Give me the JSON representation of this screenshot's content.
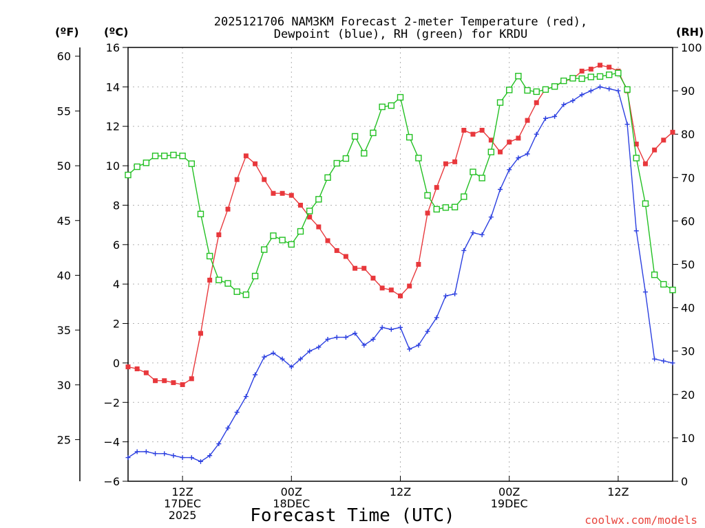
{
  "chart_data": {
    "type": "line",
    "title_line1": "2025121706 NAM3KM Forecast 2-meter Temperature (red),",
    "title_line2": "Dewpoint (blue), RH (green) for KRDU",
    "xlabel": "Forecast Time (UTC)",
    "credit": "coolwx.com/models",
    "unit_f": "(ºF)",
    "unit_c": "(ºC)",
    "unit_rh": "(RH)",
    "xlim": [
      6,
      66
    ],
    "ylim_c": [
      -6,
      16
    ],
    "ylim_rh": [
      0,
      100
    ],
    "ylim_f": [
      21.2,
      60.8
    ],
    "c_ticks": [
      -6,
      -4,
      -2,
      0,
      2,
      4,
      6,
      8,
      10,
      12,
      14,
      16
    ],
    "c_tick_labels": [
      "−6",
      "−4",
      "−2",
      "0",
      "2",
      "4",
      "6",
      "8",
      "10",
      "12",
      "14",
      "16"
    ],
    "f_ticks": [
      25,
      30,
      35,
      40,
      45,
      50,
      55,
      60
    ],
    "f_tick_labels": [
      "25",
      "30",
      "35",
      "40",
      "45",
      "50",
      "55",
      "60"
    ],
    "rh_ticks": [
      0,
      10,
      20,
      30,
      40,
      50,
      60,
      70,
      80,
      90,
      100
    ],
    "rh_tick_labels": [
      "0",
      "10",
      "20",
      "30",
      "40",
      "50",
      "60",
      "70",
      "80",
      "90",
      "100"
    ],
    "x_ticks": [
      {
        "hour": 12,
        "lines": [
          "12Z",
          "17DEC",
          "2025"
        ]
      },
      {
        "hour": 24,
        "lines": [
          "00Z",
          "18DEC"
        ]
      },
      {
        "hour": 36,
        "lines": [
          "12Z"
        ]
      },
      {
        "hour": 48,
        "lines": [
          "00Z",
          "19DEC"
        ]
      },
      {
        "hour": 60,
        "lines": [
          "12Z"
        ]
      }
    ],
    "x": [
      6,
      7,
      8,
      9,
      10,
      11,
      12,
      13,
      14,
      15,
      16,
      17,
      18,
      19,
      20,
      21,
      22,
      23,
      24,
      25,
      26,
      27,
      28,
      29,
      30,
      31,
      32,
      33,
      34,
      35,
      36,
      37,
      38,
      39,
      40,
      41,
      42,
      43,
      44,
      45,
      46,
      47,
      48,
      49,
      50,
      51,
      52,
      53,
      54,
      55,
      56,
      57,
      58,
      59,
      60,
      61,
      62,
      63,
      64,
      65,
      66
    ],
    "series": [
      {
        "name": "Temperature",
        "unit": "C",
        "color": "#e8383c",
        "marker": "filled-square",
        "values": [
          -0.2,
          -0.3,
          -0.5,
          -0.9,
          -0.9,
          -1.0,
          -1.1,
          -0.8,
          1.5,
          4.2,
          6.5,
          7.8,
          9.3,
          10.5,
          10.1,
          9.3,
          8.6,
          8.6,
          8.5,
          8.0,
          7.4,
          6.9,
          6.2,
          5.7,
          5.4,
          4.8,
          4.8,
          4.3,
          3.8,
          3.7,
          3.4,
          3.9,
          5.0,
          7.6,
          8.9,
          10.1,
          10.2,
          11.8,
          11.6,
          11.8,
          11.3,
          10.7,
          11.2,
          11.4,
          12.3,
          13.2,
          13.9,
          14.0,
          14.3,
          14.4,
          14.8,
          14.9,
          15.1,
          15.0,
          14.8,
          13.8,
          11.1,
          10.1,
          10.8,
          11.3,
          11.7
        ]
      },
      {
        "name": "Dewpoint",
        "unit": "C",
        "color": "#2b3fe0",
        "marker": "plus",
        "values": [
          -4.8,
          -4.5,
          -4.5,
          -4.6,
          -4.6,
          -4.7,
          -4.8,
          -4.8,
          -5.0,
          -4.7,
          -4.1,
          -3.3,
          -2.5,
          -1.7,
          -0.6,
          0.3,
          0.5,
          0.2,
          -0.2,
          0.2,
          0.6,
          0.8,
          1.2,
          1.3,
          1.3,
          1.5,
          0.9,
          1.2,
          1.8,
          1.7,
          1.8,
          0.7,
          0.9,
          1.6,
          2.3,
          3.4,
          3.5,
          5.7,
          6.6,
          6.5,
          7.4,
          8.8,
          9.8,
          10.4,
          10.6,
          11.6,
          12.4,
          12.5,
          13.1,
          13.3,
          13.6,
          13.8,
          14.0,
          13.9,
          13.8,
          12.1,
          6.7,
          3.6,
          0.2,
          0.1,
          0.0
        ]
      },
      {
        "name": "RH",
        "unit": "%",
        "color": "#22c022",
        "marker": "open-square",
        "values": [
          70.6,
          72.5,
          73.4,
          75.0,
          75.0,
          75.2,
          75.0,
          73.2,
          61.6,
          51.9,
          46.4,
          45.6,
          43.7,
          43.0,
          47.3,
          53.4,
          56.6,
          55.6,
          54.6,
          57.6,
          62.3,
          65.0,
          70.0,
          73.3,
          74.4,
          79.5,
          75.6,
          80.3,
          86.3,
          86.6,
          88.5,
          79.3,
          74.5,
          65.9,
          62.7,
          63.1,
          63.2,
          65.6,
          71.3,
          69.9,
          75.9,
          87.3,
          90.2,
          93.4,
          90.1,
          89.8,
          90.3,
          91.0,
          92.3,
          92.9,
          92.8,
          93.2,
          93.3,
          93.7,
          94.1,
          90.3,
          74.5,
          64.0,
          47.6,
          45.4,
          44.1
        ]
      }
    ]
  }
}
